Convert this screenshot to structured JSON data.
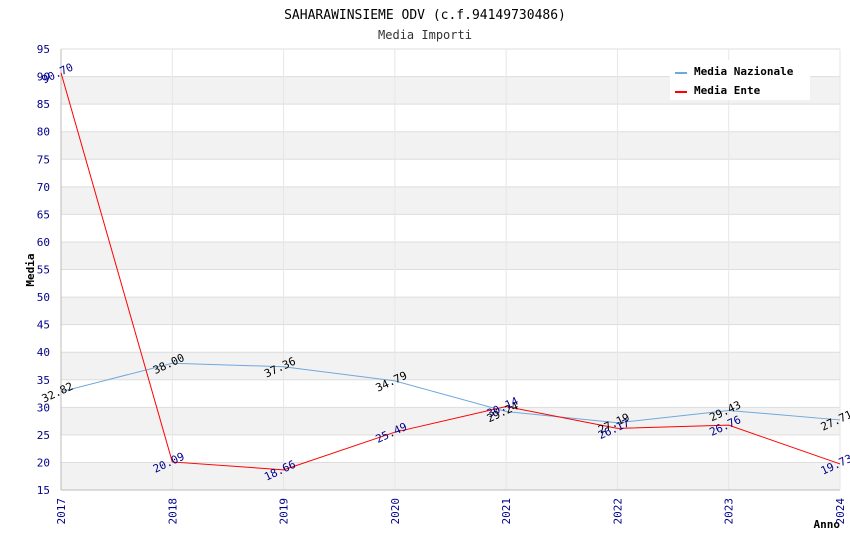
{
  "chart_data": {
    "type": "line",
    "title": "SAHARAWINSIEME ODV (c.f.94149730486)",
    "subtitle": "Media Importi",
    "xlabel": "Anno",
    "ylabel": "Media",
    "categories": [
      "2017",
      "2018",
      "2019",
      "2020",
      "2021",
      "2022",
      "2023",
      "2024"
    ],
    "ylim": [
      15,
      95
    ],
    "yticks": [
      15,
      20,
      25,
      30,
      35,
      40,
      45,
      50,
      55,
      60,
      65,
      70,
      75,
      80,
      85,
      90,
      95
    ],
    "legend_position": "top-right",
    "series": [
      {
        "name": "Media Nazionale",
        "color": "#6fa8dc",
        "label_color": "#000000",
        "values": [
          32.82,
          38.0,
          37.36,
          34.79,
          29.24,
          27.19,
          29.43,
          27.71
        ],
        "labels": [
          "32.82",
          "38.00",
          "37.36",
          "34.79",
          "29.24",
          "27.19",
          "29.43",
          "27.71"
        ]
      },
      {
        "name": "Media Ente",
        "color": "#ff0000",
        "label_color": "#00008b",
        "values": [
          90.7,
          20.09,
          18.66,
          25.49,
          30.14,
          26.17,
          26.76,
          19.73
        ],
        "labels": [
          "90.70",
          "20.09",
          "18.66",
          "25.49",
          "30.14",
          "26.17",
          "26.76",
          "19.73"
        ]
      }
    ]
  }
}
